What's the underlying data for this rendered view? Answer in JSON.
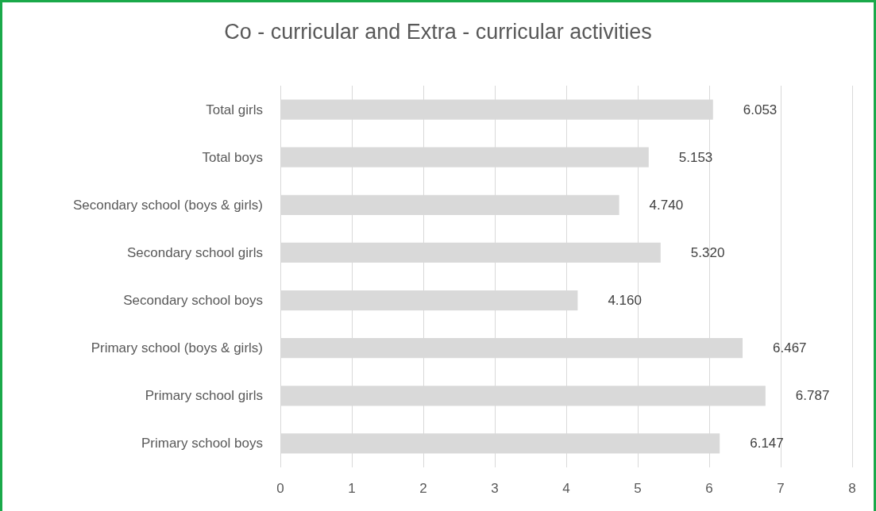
{
  "chart_data": {
    "type": "bar",
    "orientation": "horizontal",
    "title": "Co - curricular and Extra - curricular activities",
    "categories": [
      "Total girls",
      "Total boys",
      "Secondary school (boys & girls)",
      "Secondary school girls",
      "Secondary school boys",
      "Primary school (boys & girls)",
      "Primary school girls",
      "Primary school boys"
    ],
    "values": [
      6.053,
      5.153,
      4.74,
      5.32,
      4.16,
      6.467,
      6.787,
      6.147
    ],
    "value_labels": [
      "6.053",
      "5.153",
      "4.740",
      "5.320",
      "4.160",
      "6.467",
      "6.787",
      "6.147"
    ],
    "color": "#d9d9d9",
    "xlim": [
      0,
      8
    ],
    "xticks": [
      0,
      1,
      2,
      3,
      4,
      5,
      6,
      7,
      8
    ],
    "grid": "x"
  }
}
